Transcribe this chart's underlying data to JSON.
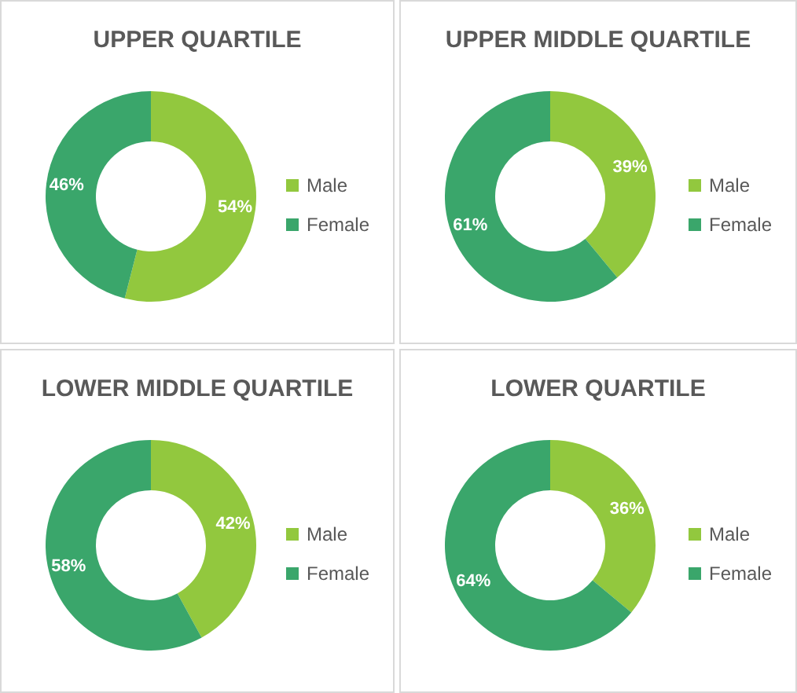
{
  "chart_data": [
    {
      "type": "donut",
      "title": "UPPER QUARTILE",
      "categories": [
        "Male",
        "Female"
      ],
      "values": [
        54,
        46
      ],
      "colors": [
        "#92c83e",
        "#3aa66b"
      ],
      "value_labels": [
        "54%",
        "46%"
      ],
      "legend": "right"
    },
    {
      "type": "donut",
      "title": "UPPER MIDDLE QUARTILE",
      "categories": [
        "Male",
        "Female"
      ],
      "values": [
        39,
        61
      ],
      "colors": [
        "#92c83e",
        "#3aa66b"
      ],
      "value_labels": [
        "39%",
        "61%"
      ],
      "legend": "right"
    },
    {
      "type": "donut",
      "title": "LOWER MIDDLE QUARTILE",
      "categories": [
        "Male",
        "Female"
      ],
      "values": [
        42,
        58
      ],
      "colors": [
        "#92c83e",
        "#3aa66b"
      ],
      "value_labels": [
        "42%",
        "58%"
      ],
      "legend": "right"
    },
    {
      "type": "donut",
      "title": "LOWER QUARTILE",
      "categories": [
        "Male",
        "Female"
      ],
      "values": [
        36,
        64
      ],
      "colors": [
        "#92c83e",
        "#3aa66b"
      ],
      "value_labels": [
        "36%",
        "64%"
      ],
      "legend": "right"
    }
  ]
}
